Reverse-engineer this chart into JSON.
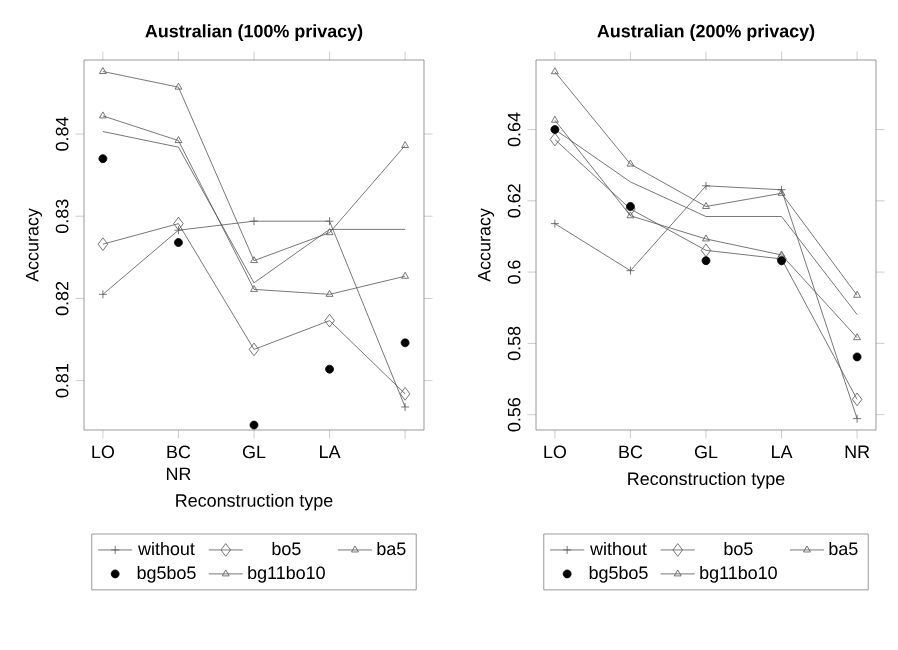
{
  "chart_data": [
    {
      "type": "line",
      "title": "Australian (100% privacy)",
      "xlabel": "Reconstruction type",
      "ylabel": "Accuracy",
      "categories": [
        "LO",
        "BC NR",
        "GL",
        "LA",
        null
      ],
      "ylim": [
        0.804,
        0.849
      ],
      "yticks": [
        0.81,
        0.82,
        0.83,
        0.84
      ],
      "legend": "bottom",
      "series": [
        {
          "name": "without",
          "color": "#555555",
          "marker": "cross",
          "values": [
            0.8205,
            0.8283,
            0.8294,
            0.8294,
            0.8068
          ]
        },
        {
          "name": "bo5",
          "color": "#555555",
          "marker": "diamond",
          "values": [
            0.8266,
            0.8291,
            0.8138,
            0.8173,
            0.8084
          ]
        },
        {
          "color": "#555555",
          "marker": "none",
          "values": [
            0.8403,
            0.8384,
            0.8219,
            0.8284,
            0.8284
          ]
        },
        {
          "name": "ba5",
          "color": "#555555",
          "marker": "triangle",
          "values": [
            0.8422,
            0.8392,
            0.8211,
            0.8205,
            0.8227
          ]
        },
        {
          "name": "bg5bo5",
          "type": "scatter",
          "color": "#000000",
          "marker": "circle",
          "values": [
            0.837,
            0.8268,
            0.8046,
            0.8114,
            0.8146
          ]
        },
        {
          "name": "bg11bo10",
          "color": "#555555",
          "marker": "triangle",
          "values": [
            0.8476,
            0.8457,
            0.8246,
            0.828,
            0.8386
          ]
        }
      ]
    },
    {
      "type": "line",
      "title": "Australian (200% privacy)",
      "xlabel": "Reconstruction type",
      "ylabel": "Accuracy",
      "categories": [
        "LO",
        "BC",
        "GL",
        "LA",
        "NR"
      ],
      "ylim": [
        0.5557,
        0.6595
      ],
      "yticks": [
        0.56,
        0.58,
        0.6,
        0.62,
        0.64
      ],
      "legend": "bottom",
      "series": [
        {
          "name": "without",
          "color": "#555555",
          "marker": "cross",
          "values": [
            0.6136,
            0.6004,
            0.6242,
            0.6231,
            0.5589
          ]
        },
        {
          "name": "bo5",
          "color": "#555555",
          "marker": "diamond",
          "values": [
            0.6372,
            0.6177,
            0.6061,
            0.6037,
            0.5643
          ]
        },
        {
          "color": "#555555",
          "marker": "none",
          "values": [
            0.64,
            0.6253,
            0.6156,
            0.6156,
            0.5881
          ]
        },
        {
          "name": "ba5",
          "color": "#555555",
          "marker": "triangle",
          "values": [
            0.6426,
            0.6158,
            0.6093,
            0.6048,
            0.5816
          ]
        },
        {
          "name": "bg5bo5",
          "type": "scatter",
          "color": "#000000",
          "marker": "circle",
          "values": [
            0.64,
            0.6184,
            0.6032,
            0.6032,
            0.5762
          ]
        },
        {
          "name": "bg11bo10",
          "color": "#555555",
          "marker": "triangle",
          "values": [
            0.6562,
            0.6303,
            0.6184,
            0.6221,
            0.5935
          ]
        }
      ]
    }
  ]
}
